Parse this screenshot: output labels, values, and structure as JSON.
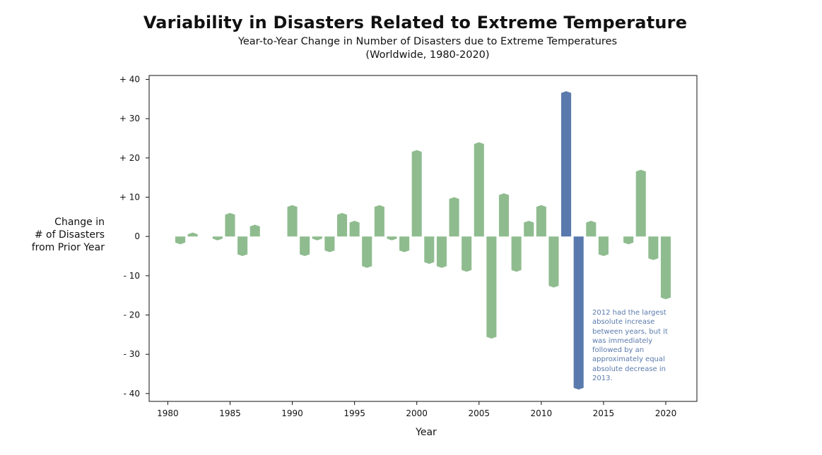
{
  "chart_data": {
    "type": "bar",
    "title": "Variability in Disasters Related to Extreme Temperature",
    "subtitle_lines": [
      "Year-to-Year Change in Number of Disasters due to Extreme Temperatures",
      "(Worldwide, 1980-2020)"
    ],
    "xlabel": "Year",
    "ylabel_lines": [
      "Change in",
      "# of Disasters",
      "from Prior Year"
    ],
    "x": [
      1981,
      1982,
      1983,
      1984,
      1985,
      1986,
      1987,
      1988,
      1989,
      1990,
      1991,
      1992,
      1993,
      1994,
      1995,
      1996,
      1997,
      1998,
      1999,
      2000,
      2001,
      2002,
      2003,
      2004,
      2005,
      2006,
      2007,
      2008,
      2009,
      2010,
      2011,
      2012,
      2013,
      2014,
      2015,
      2016,
      2017,
      2018,
      2019,
      2020
    ],
    "values": [
      -2,
      1,
      0,
      -1,
      6,
      -5,
      3,
      0,
      0,
      8,
      -5,
      -1,
      -4,
      6,
      4,
      -8,
      8,
      -1,
      -4,
      22,
      -7,
      -8,
      10,
      -9,
      24,
      -26,
      11,
      -9,
      4,
      8,
      -13,
      37,
      -39,
      4,
      -5,
      0,
      -2,
      17,
      -6,
      -16
    ],
    "xticks": [
      1980,
      1985,
      1990,
      1995,
      2000,
      2005,
      2010,
      2015,
      2020
    ],
    "xlim": [
      1978.5,
      2022.5
    ],
    "yticks": [
      {
        "value": 40,
        "label": "+ 40"
      },
      {
        "value": 30,
        "label": "+ 30"
      },
      {
        "value": 20,
        "label": "+ 20"
      },
      {
        "value": 10,
        "label": "+ 10"
      },
      {
        "value": 0,
        "label": "0"
      },
      {
        "value": -10,
        "label": "- 10"
      },
      {
        "value": -20,
        "label": "- 20"
      },
      {
        "value": -30,
        "label": "- 30"
      },
      {
        "value": -40,
        "label": "- 40"
      }
    ],
    "ylim": [
      -42,
      41
    ],
    "highlight_years": [
      2012,
      2013
    ],
    "grid": false,
    "annotation": "2012 had the largest absolute increase between years, but it was immediately followed by an approximately equal absolute decrease in 2013.",
    "colors": {
      "default": "#8fbc8f",
      "highlight": "#5a7aad"
    }
  }
}
